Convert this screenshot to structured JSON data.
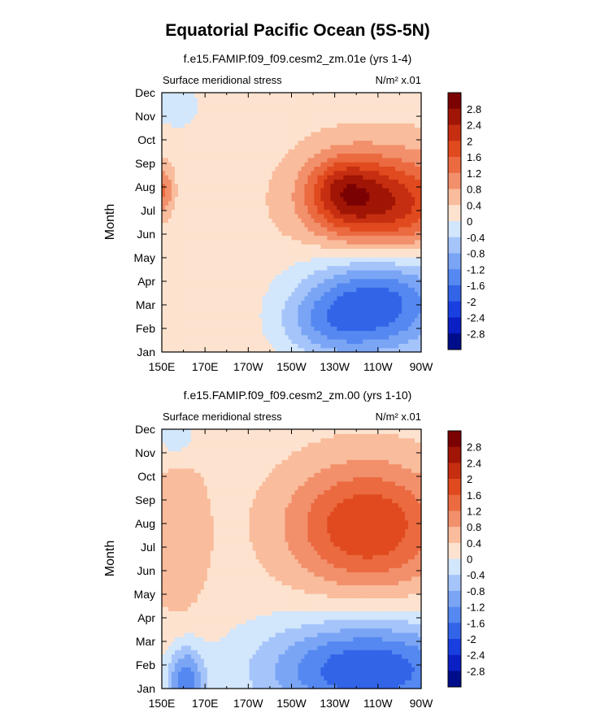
{
  "title": "Equatorial Pacific Ocean (5S-5N)",
  "colors": {
    "bins": [
      "#000d8a",
      "#0a1fc4",
      "#1a3fe0",
      "#3264e8",
      "#5588f0",
      "#7aa5f5",
      "#a5c4fa",
      "#d2e6fc",
      "#fde3cf",
      "#f9bc9c",
      "#f2906c",
      "#eb6a40",
      "#e04a1e",
      "#c52e10",
      "#a01505",
      "#7b0202"
    ]
  },
  "chart_data": [
    {
      "type": "heatmap",
      "subtitle": "f.e15.FAMIP.f09_f09.cesm2_zm.01e (yrs 1-4)",
      "left_label": "Surface meridional stress",
      "right_label": "N/m² x.01",
      "ylabel": "Month",
      "xlabel": "",
      "x_ticks": [
        "150E",
        "170E",
        "170W",
        "150W",
        "130W",
        "110W",
        "90W"
      ],
      "x_range_deg_east": [
        150,
        270
      ],
      "y_ticks": [
        "Jan",
        "Feb",
        "Mar",
        "Apr",
        "May",
        "Jun",
        "Jul",
        "Aug",
        "Sep",
        "Oct",
        "Nov",
        "Dec"
      ],
      "colorbar_labels": [
        "2.8",
        "2.4",
        "2",
        "1.6",
        "1.2",
        "0.8",
        "0.4",
        "0",
        "-0.4",
        "-0.8",
        "-1.2",
        "-1.6",
        "-2",
        "-2.4",
        "-2.8"
      ],
      "levels": [
        -2.8,
        -2.4,
        -2.0,
        -1.6,
        -1.2,
        -0.8,
        -0.4,
        0,
        0.4,
        0.8,
        1.2,
        1.6,
        2.0,
        2.4,
        2.8
      ],
      "features": [
        {
          "lon": 252,
          "month": 7.3,
          "amp": 2.2,
          "s_lon": 23,
          "s_month": 1.5
        },
        {
          "lon": 233,
          "month": 7.9,
          "amp": 1.1,
          "s_lon": 11,
          "s_month": 1.0
        },
        {
          "lon": 151,
          "month": 7.9,
          "amp": 1.0,
          "s_lon": 3,
          "s_month": 0.7
        },
        {
          "lon": 250,
          "month": 3.1,
          "amp": -2.1,
          "s_lon": 24,
          "s_month": 1.6
        },
        {
          "lon": 225,
          "month": 2.2,
          "amp": -0.7,
          "s_lon": 15,
          "s_month": 1.0
        },
        {
          "lon": 157,
          "month": 11.4,
          "amp": -0.35,
          "s_lon": 12,
          "s_month": 1.0
        }
      ],
      "background": 0.25
    },
    {
      "type": "heatmap",
      "subtitle": "f.e15.FAMIP.f09_f09.cesm2_zm.00 (yrs 1-10)",
      "left_label": "Surface meridional stress",
      "right_label": "N/m² x.01",
      "ylabel": "Month",
      "xlabel": "",
      "x_ticks": [
        "150E",
        "170E",
        "170W",
        "150W",
        "130W",
        "110W",
        "90W"
      ],
      "x_range_deg_east": [
        150,
        270
      ],
      "y_ticks": [
        "Jan",
        "Feb",
        "Mar",
        "Apr",
        "May",
        "Jun",
        "Jul",
        "Aug",
        "Sep",
        "Oct",
        "Nov",
        "Dec"
      ],
      "colorbar_labels": [
        "2.8",
        "2.4",
        "2",
        "1.6",
        "1.2",
        "0.8",
        "0.4",
        "0",
        "-0.4",
        "-0.8",
        "-1.2",
        "-1.6",
        "-2",
        "-2.4",
        "-2.8"
      ],
      "levels": [
        -2.8,
        -2.4,
        -2.0,
        -1.6,
        -1.2,
        -0.8,
        -0.4,
        0,
        0.4,
        0.8,
        1.2,
        1.6,
        2.0,
        2.4,
        2.8
      ],
      "features": [
        {
          "lon": 245,
          "month": 7.9,
          "amp": 1.8,
          "s_lon": 26,
          "s_month": 1.9
        },
        {
          "lon": 158,
          "month": 7.5,
          "amp": 0.55,
          "s_lon": 10,
          "s_month": 2.5
        },
        {
          "lon": 245,
          "month": 1.8,
          "amp": -2.2,
          "s_lon": 34,
          "s_month": 1.5
        },
        {
          "lon": 161,
          "month": 1.4,
          "amp": -1.6,
          "s_lon": 6,
          "s_month": 1.0
        },
        {
          "lon": 157,
          "month": 11.6,
          "amp": -0.5,
          "s_lon": 7,
          "s_month": 0.7
        }
      ],
      "background": 0.2
    }
  ]
}
